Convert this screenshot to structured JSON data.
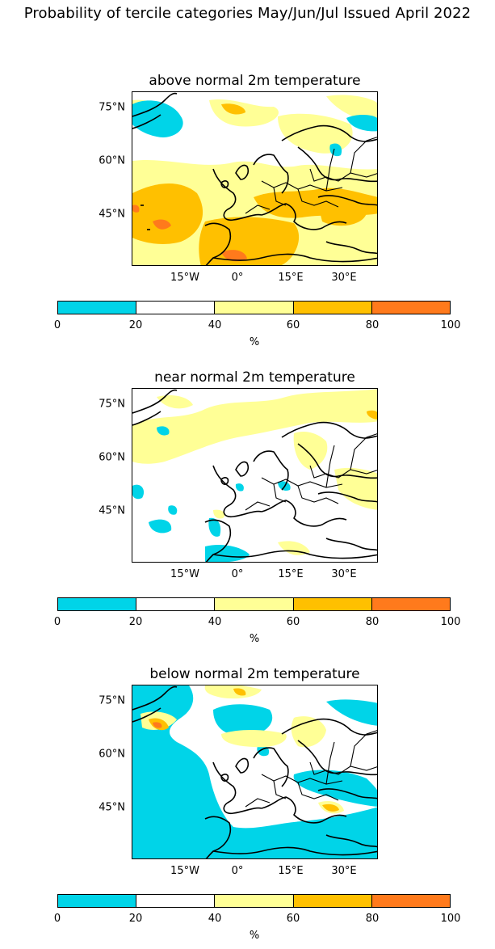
{
  "title": "Probability of tercile categories May/Jun/Jul Issued April 2022",
  "colors": {
    "bin_0_20": "#00d4e8",
    "bin_20_40": "#ffffff",
    "bin_40_60": "#ffff96",
    "bin_60_80": "#ffc000",
    "bin_80_100": "#ff7a1c",
    "coastline": "#000000"
  },
  "map": {
    "lat_ticks": [
      "75°N",
      "60°N",
      "45°N"
    ],
    "lon_ticks": [
      "15°W",
      "0°",
      "15°E",
      "30°E"
    ]
  },
  "colorbar": {
    "ticks": [
      "0",
      "20",
      "40",
      "60",
      "80",
      "100"
    ],
    "unit": "%"
  },
  "panels": [
    {
      "title": "above normal 2m temperature"
    },
    {
      "title": "near normal 2m temperature"
    },
    {
      "title": "below normal 2m temperature"
    }
  ]
}
